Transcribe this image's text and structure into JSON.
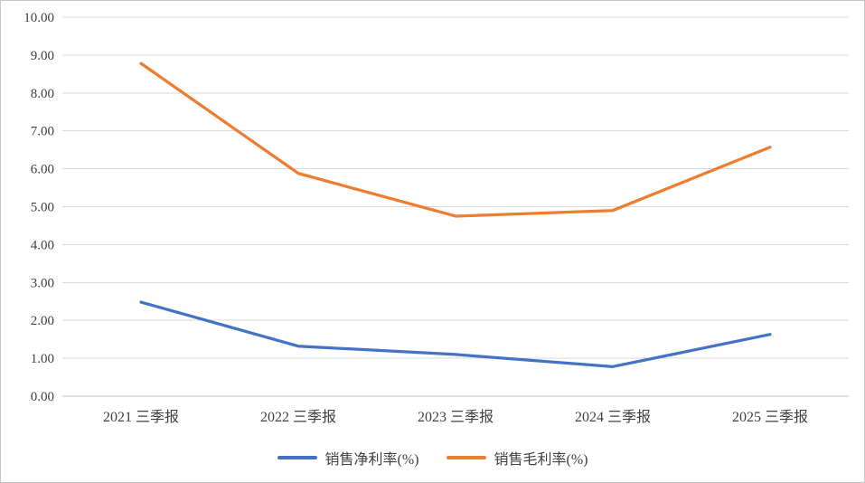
{
  "chart": {
    "colors": {
      "grid": "#d9d9d9",
      "axis": "#bfbfbf",
      "text": "#404040"
    }
  },
  "chart_data": {
    "type": "line",
    "title": "",
    "xlabel": "",
    "ylabel": "",
    "categories": [
      "2021 三季报",
      "2022 三季报",
      "2023 三季报",
      "2024 三季报",
      "2025 三季报"
    ],
    "series": [
      {
        "name": "销售净利率(%)",
        "color": "#4472C4",
        "values": [
          2.48,
          1.32,
          1.1,
          0.78,
          1.63
        ]
      },
      {
        "name": "销售毛利率(%)",
        "color": "#ED7D31",
        "values": [
          8.78,
          5.88,
          4.75,
          4.9,
          6.57
        ]
      }
    ],
    "ylim": [
      0,
      10
    ],
    "ytick_step": 1,
    "yticks": [
      "0.00",
      "1.00",
      "2.00",
      "3.00",
      "4.00",
      "5.00",
      "6.00",
      "7.00",
      "8.00",
      "9.00",
      "10.00"
    ],
    "grid": true,
    "legend_position": "bottom"
  }
}
